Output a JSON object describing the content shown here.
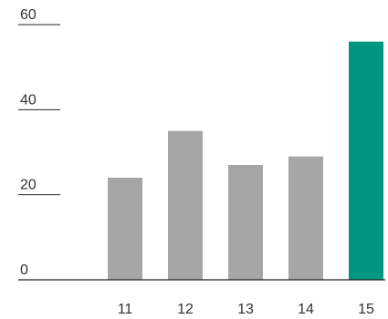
{
  "chart_data": {
    "type": "bar",
    "title": "",
    "xlabel": "",
    "ylabel": "",
    "categories": [
      "11",
      "12",
      "13",
      "14",
      "15"
    ],
    "values": [
      24,
      35,
      27,
      29,
      56
    ],
    "ylim": [
      0,
      60
    ],
    "yticks": [
      0,
      20,
      40,
      60
    ],
    "ytick_labels": [
      "0",
      "20",
      "40",
      "60"
    ],
    "grid": false,
    "legend": "none",
    "colors": {
      "bar": "#a6a6a6",
      "highlight": "#009682",
      "axis": "#222222",
      "text": "#333333"
    },
    "highlight_index": 4
  }
}
